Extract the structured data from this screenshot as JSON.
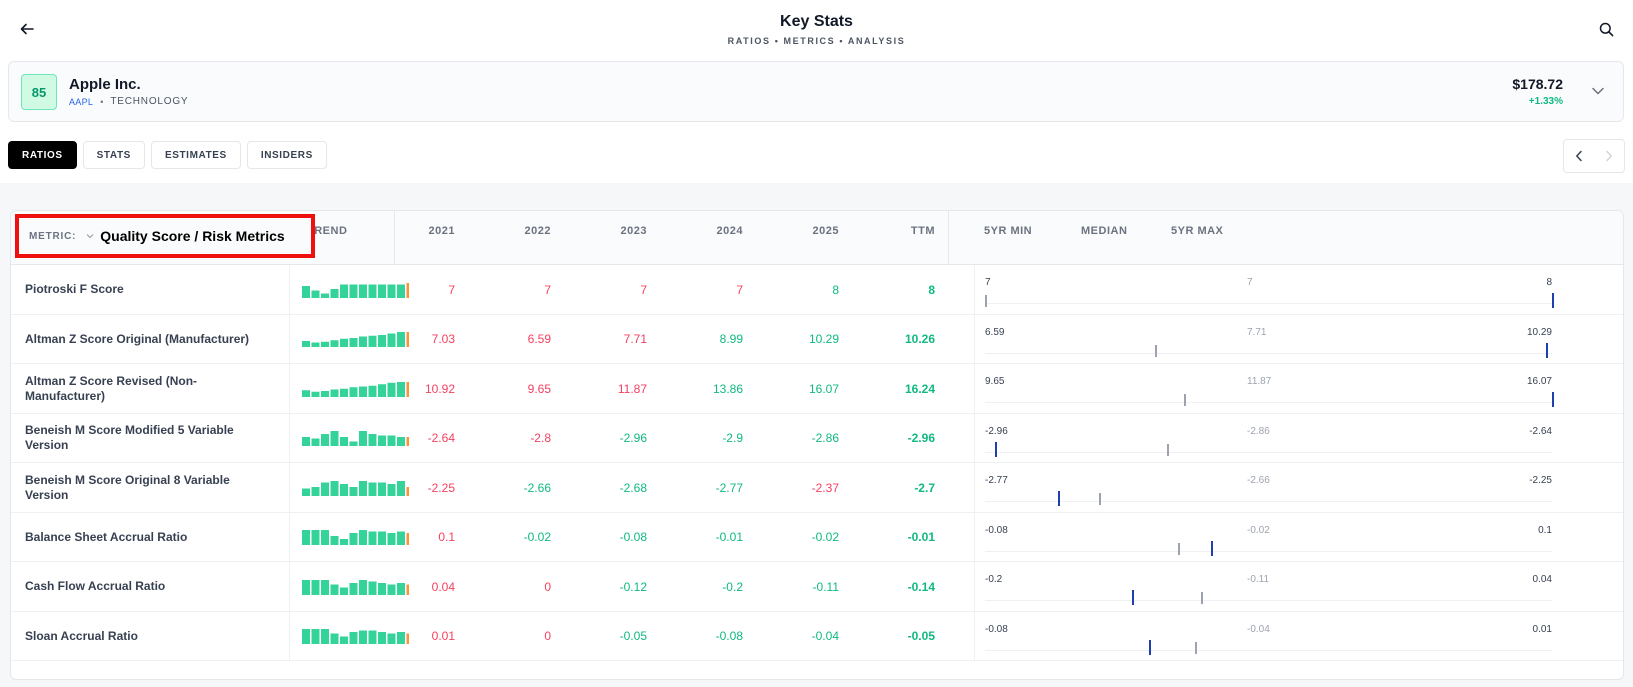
{
  "header": {
    "title": "Key Stats",
    "subtitle": "RATIOS • METRICS • ANALYSIS"
  },
  "company": {
    "score": "85",
    "name": "Apple Inc.",
    "ticker": "AAPL",
    "separator": "•",
    "sector": "TECHNOLOGY",
    "price": "$178.72",
    "change": "+1.33%"
  },
  "tabs": [
    {
      "label": "RATIOS",
      "active": true
    },
    {
      "label": "STATS",
      "active": false
    },
    {
      "label": "ESTIMATES",
      "active": false
    },
    {
      "label": "INSIDERS",
      "active": false
    }
  ],
  "table": {
    "metric_label": "METRIC:",
    "metric_value": "Quality Score / Risk Metrics",
    "trend_header": "TREND",
    "year_headers": [
      "2021",
      "2022",
      "2023",
      "2024",
      "2025",
      "TTM"
    ],
    "range_headers": [
      "5YR MIN",
      "MEDIAN",
      "5YR MAX"
    ],
    "colors": {
      "positive": "#10b981",
      "negative": "#f43f5e",
      "bar": "#34d399",
      "bar_last": "#fb923c",
      "current": "#1e40af",
      "median": "#9ca3af"
    },
    "rows": [
      {
        "name": "Piotroski F Score",
        "values": [
          "7",
          "7",
          "7",
          "7",
          "8",
          "8"
        ],
        "signs": [
          "neg",
          "neg",
          "neg",
          "neg",
          "pos",
          "pos"
        ],
        "min": "7",
        "median": "7",
        "max": "8",
        "median_pos": 0.0,
        "current_pos": 1.0,
        "trend": [
          0.8,
          0.5,
          0.3,
          0.6,
          0.9,
          0.9,
          0.9,
          0.9,
          0.9,
          0.9,
          0.9,
          1.0
        ]
      },
      {
        "name": "Altman Z Score Original (Manufacturer)",
        "values": [
          "7.03",
          "6.59",
          "7.71",
          "8.99",
          "10.29",
          "10.26"
        ],
        "signs": [
          "neg",
          "neg",
          "neg",
          "pos",
          "pos",
          "pos"
        ],
        "min": "6.59",
        "median": "7.71",
        "max": "10.29",
        "median_pos": 0.3,
        "current_pos": 0.99,
        "trend": [
          0.4,
          0.3,
          0.35,
          0.45,
          0.55,
          0.6,
          0.7,
          0.75,
          0.8,
          0.9,
          1.0,
          1.0
        ]
      },
      {
        "name": "Altman Z Score Revised (Non-Manufacturer)",
        "values": [
          "10.92",
          "9.65",
          "11.87",
          "13.86",
          "16.07",
          "16.24"
        ],
        "signs": [
          "neg",
          "neg",
          "neg",
          "pos",
          "pos",
          "pos"
        ],
        "min": "9.65",
        "median": "11.87",
        "max": "16.07",
        "median_pos": 0.35,
        "current_pos": 1.0,
        "trend": [
          0.45,
          0.35,
          0.4,
          0.5,
          0.55,
          0.65,
          0.7,
          0.75,
          0.85,
          0.95,
          1.0,
          1.0
        ]
      },
      {
        "name": "Beneish M Score Modified 5 Variable Version",
        "values": [
          "-2.64",
          "-2.8",
          "-2.96",
          "-2.9",
          "-2.86",
          "-2.96"
        ],
        "signs": [
          "neg",
          "neg",
          "pos",
          "pos",
          "pos",
          "pos"
        ],
        "min": "-2.96",
        "median": "-2.86",
        "max": "-2.64",
        "median_pos": 0.32,
        "current_pos": 0.02,
        "trend": [
          0.6,
          0.5,
          0.8,
          1.0,
          0.6,
          0.3,
          1.0,
          0.8,
          0.7,
          0.7,
          0.6,
          0.6
        ]
      },
      {
        "name": "Beneish M Score Original 8 Variable Version",
        "values": [
          "-2.25",
          "-2.66",
          "-2.68",
          "-2.77",
          "-2.37",
          "-2.7"
        ],
        "signs": [
          "neg",
          "pos",
          "pos",
          "pos",
          "neg",
          "pos"
        ],
        "min": "-2.77",
        "median": "-2.66",
        "max": "-2.25",
        "median_pos": 0.2,
        "current_pos": 0.13,
        "trend": [
          0.5,
          0.6,
          0.9,
          1.0,
          0.8,
          0.6,
          1.0,
          0.9,
          0.9,
          0.8,
          1.0,
          0.6
        ]
      },
      {
        "name": "Balance Sheet Accrual Ratio",
        "values": [
          "0.1",
          "-0.02",
          "-0.08",
          "-0.01",
          "-0.02",
          "-0.01"
        ],
        "signs": [
          "neg",
          "pos",
          "pos",
          "pos",
          "pos",
          "pos"
        ],
        "min": "-0.08",
        "median": "-0.02",
        "max": "0.1",
        "median_pos": 0.34,
        "current_pos": 0.4,
        "trend": [
          1.0,
          1.0,
          1.0,
          0.6,
          0.4,
          0.8,
          1.0,
          0.9,
          0.9,
          0.8,
          0.9,
          0.8
        ]
      },
      {
        "name": "Cash Flow Accrual Ratio",
        "values": [
          "0.04",
          "0",
          "-0.12",
          "-0.2",
          "-0.11",
          "-0.14"
        ],
        "signs": [
          "neg",
          "neg",
          "pos",
          "pos",
          "pos",
          "pos"
        ],
        "min": "-0.2",
        "median": "-0.11",
        "max": "0.04",
        "median_pos": 0.38,
        "current_pos": 0.26,
        "trend": [
          1.0,
          1.0,
          1.0,
          0.7,
          0.5,
          0.8,
          1.0,
          0.9,
          0.8,
          0.7,
          0.8,
          0.7
        ]
      },
      {
        "name": "Sloan Accrual Ratio",
        "values": [
          "0.01",
          "0",
          "-0.05",
          "-0.08",
          "-0.04",
          "-0.05"
        ],
        "signs": [
          "neg",
          "neg",
          "pos",
          "pos",
          "pos",
          "pos"
        ],
        "min": "-0.08",
        "median": "-0.04",
        "max": "0.01",
        "median_pos": 0.37,
        "current_pos": 0.29,
        "trend": [
          1.0,
          1.0,
          1.0,
          0.7,
          0.5,
          0.8,
          0.9,
          0.9,
          0.8,
          0.7,
          0.8,
          0.7
        ]
      }
    ]
  }
}
